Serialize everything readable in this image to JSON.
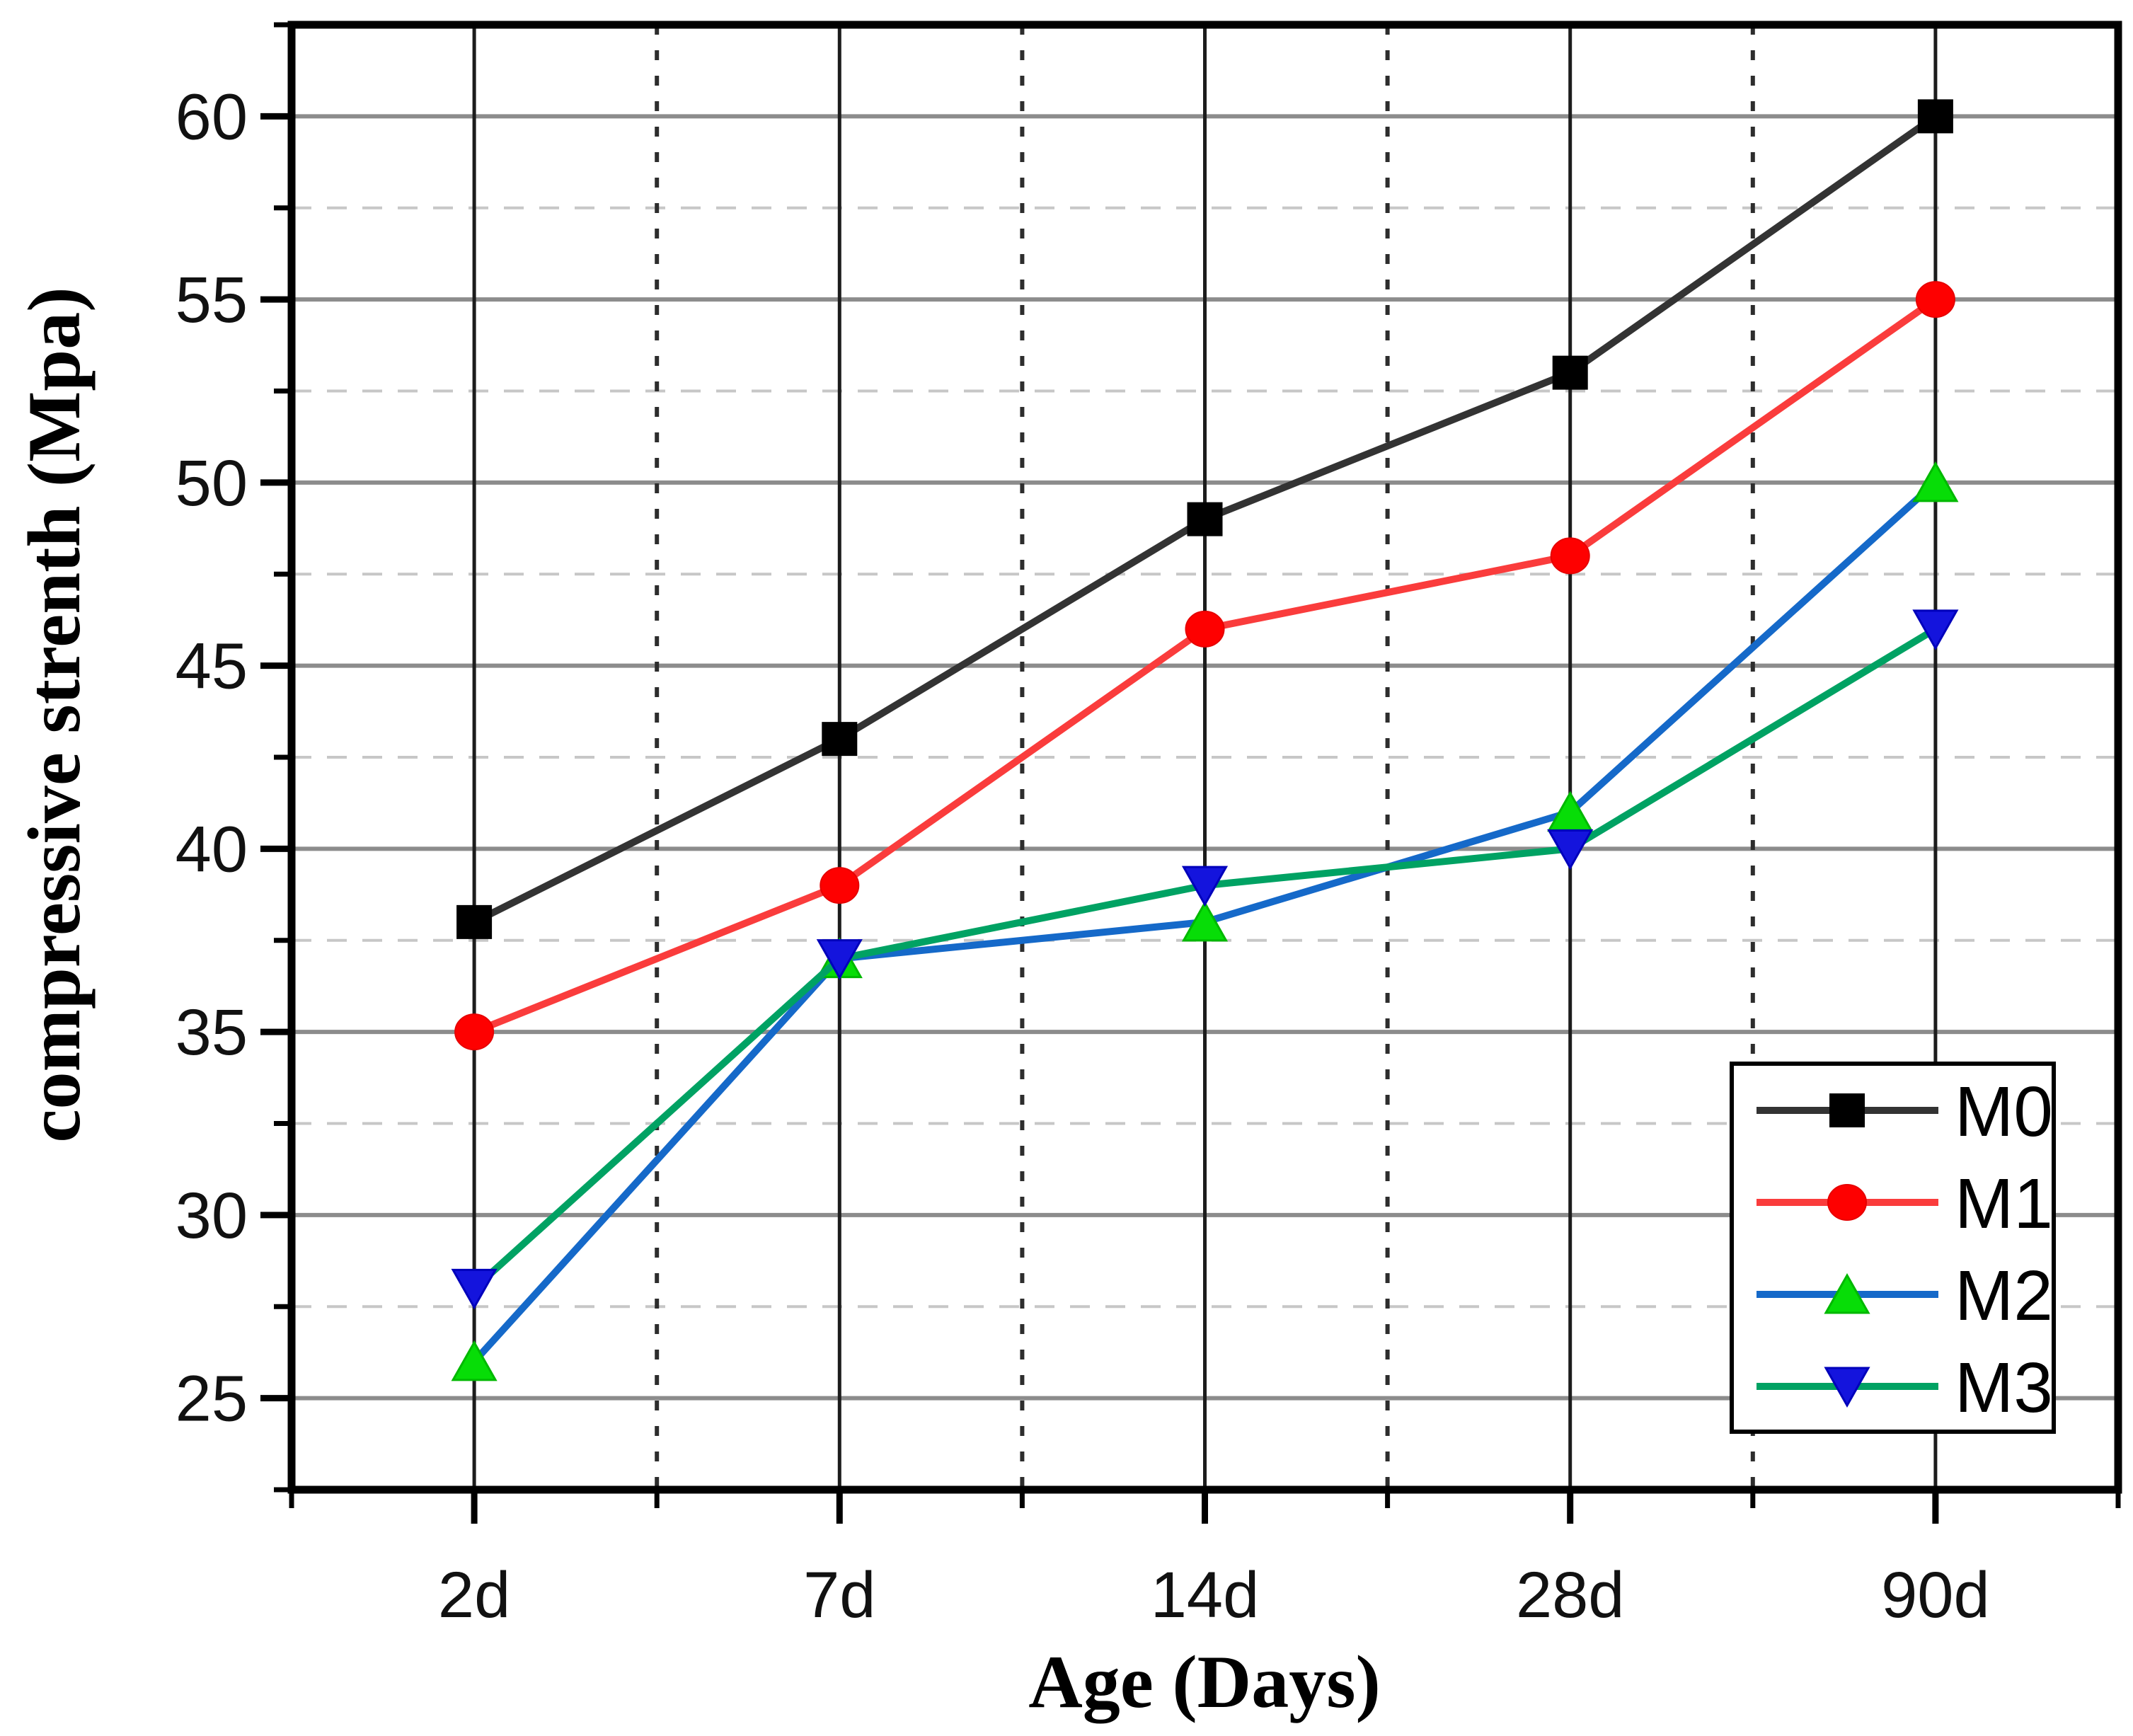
{
  "figure": {
    "background": "#ffffff",
    "frame_color": "#000000"
  },
  "chart_data": {
    "type": "line",
    "title": "",
    "xlabel": "Age (Days)",
    "ylabel": "compressive strenth (Mpa)",
    "categories": [
      "2d",
      "7d",
      "14d",
      "28d",
      "90d"
    ],
    "ylim": [
      22.5,
      62.5
    ],
    "y_major_ticks": [
      25,
      30,
      35,
      40,
      45,
      50,
      55,
      60
    ],
    "y_minor_ticks": [
      22.5,
      27.5,
      32.5,
      37.5,
      42.5,
      47.5,
      52.5,
      57.5,
      62.5
    ],
    "grid": {
      "h_major": {
        "color": "#8c8c8c",
        "width": 6,
        "dash": ""
      },
      "h_minor": {
        "color": "#c7c7c7",
        "width": 4,
        "dash": "28 22"
      },
      "v_major": {
        "color": "#1c1c1c",
        "width": 5,
        "dash": ""
      },
      "v_minor": {
        "color": "#2d2d2d",
        "width": 6,
        "dash": "14 22"
      }
    },
    "series": [
      {
        "name": "M0",
        "values": [
          38,
          43,
          49,
          53,
          60
        ],
        "line_color": "#333333",
        "marker": "square",
        "marker_color": "#000000",
        "marker_edge": "#000000"
      },
      {
        "name": "M1",
        "values": [
          35,
          39,
          46,
          48,
          55
        ],
        "line_color": "#fa3c3c",
        "marker": "circle",
        "marker_color": "#fe0000",
        "marker_edge": "#e60000"
      },
      {
        "name": "M2",
        "values": [
          26,
          37,
          38,
          41,
          50
        ],
        "line_color": "#1569c9",
        "marker": "triangle-up",
        "marker_color": "#07dd07",
        "marker_edge": "#00b800"
      },
      {
        "name": "M3",
        "values": [
          28,
          37,
          39,
          40,
          46
        ],
        "line_color": "#00a263",
        "marker": "triangle-down",
        "marker_color": "#1414dd",
        "marker_edge": "#0000bb"
      }
    ],
    "legend": {
      "position": "bottom-right",
      "entries": [
        "M0",
        "M1",
        "M2",
        "M3"
      ]
    }
  }
}
